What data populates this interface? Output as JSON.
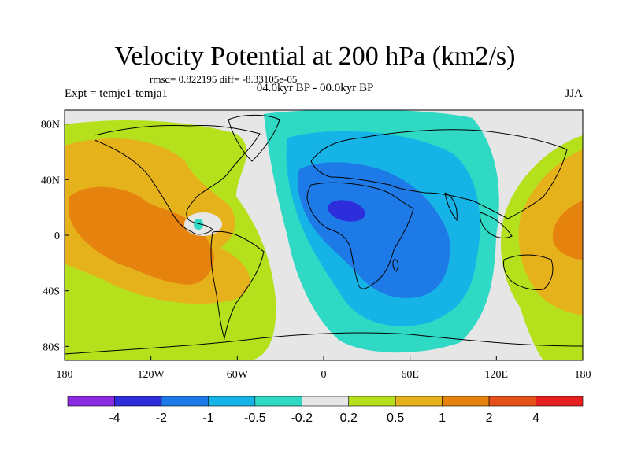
{
  "title": "Velocity Potential at 200 hPa (km2/s)",
  "stats": "rmsd= 0.822195  diff= -8.33105e-05",
  "experiment": "Expt = temje1-temja1",
  "period": "04.0kyr BP - 00.0kyr BP",
  "season": "JJA",
  "lat_ticks": [
    {
      "label": "80N",
      "lat": 80
    },
    {
      "label": "40N",
      "lat": 40
    },
    {
      "label": "0",
      "lat": 0
    },
    {
      "label": "40S",
      "lat": -40
    },
    {
      "label": "80S",
      "lat": -80
    }
  ],
  "lon_ticks": [
    {
      "label": "180",
      "lon": -180
    },
    {
      "label": "120W",
      "lon": -120
    },
    {
      "label": "60W",
      "lon": -60
    },
    {
      "label": "0",
      "lon": 0
    },
    {
      "label": "60E",
      "lon": 60
    },
    {
      "label": "120E",
      "lon": 120
    },
    {
      "label": "180",
      "lon": 180
    }
  ],
  "colorbar": {
    "colors": [
      "#8a2be2",
      "#2d2ddc",
      "#1e7ae6",
      "#16b4e6",
      "#2fd9c4",
      "#e6e6e6",
      "#b4e01c",
      "#e6b21c",
      "#e6820e",
      "#e6501a",
      "#e62020"
    ],
    "labels": [
      "-4",
      "-2",
      "-1",
      "-0.5",
      "-0.2",
      "0.2",
      "0.5",
      "1",
      "2",
      "4"
    ]
  }
}
